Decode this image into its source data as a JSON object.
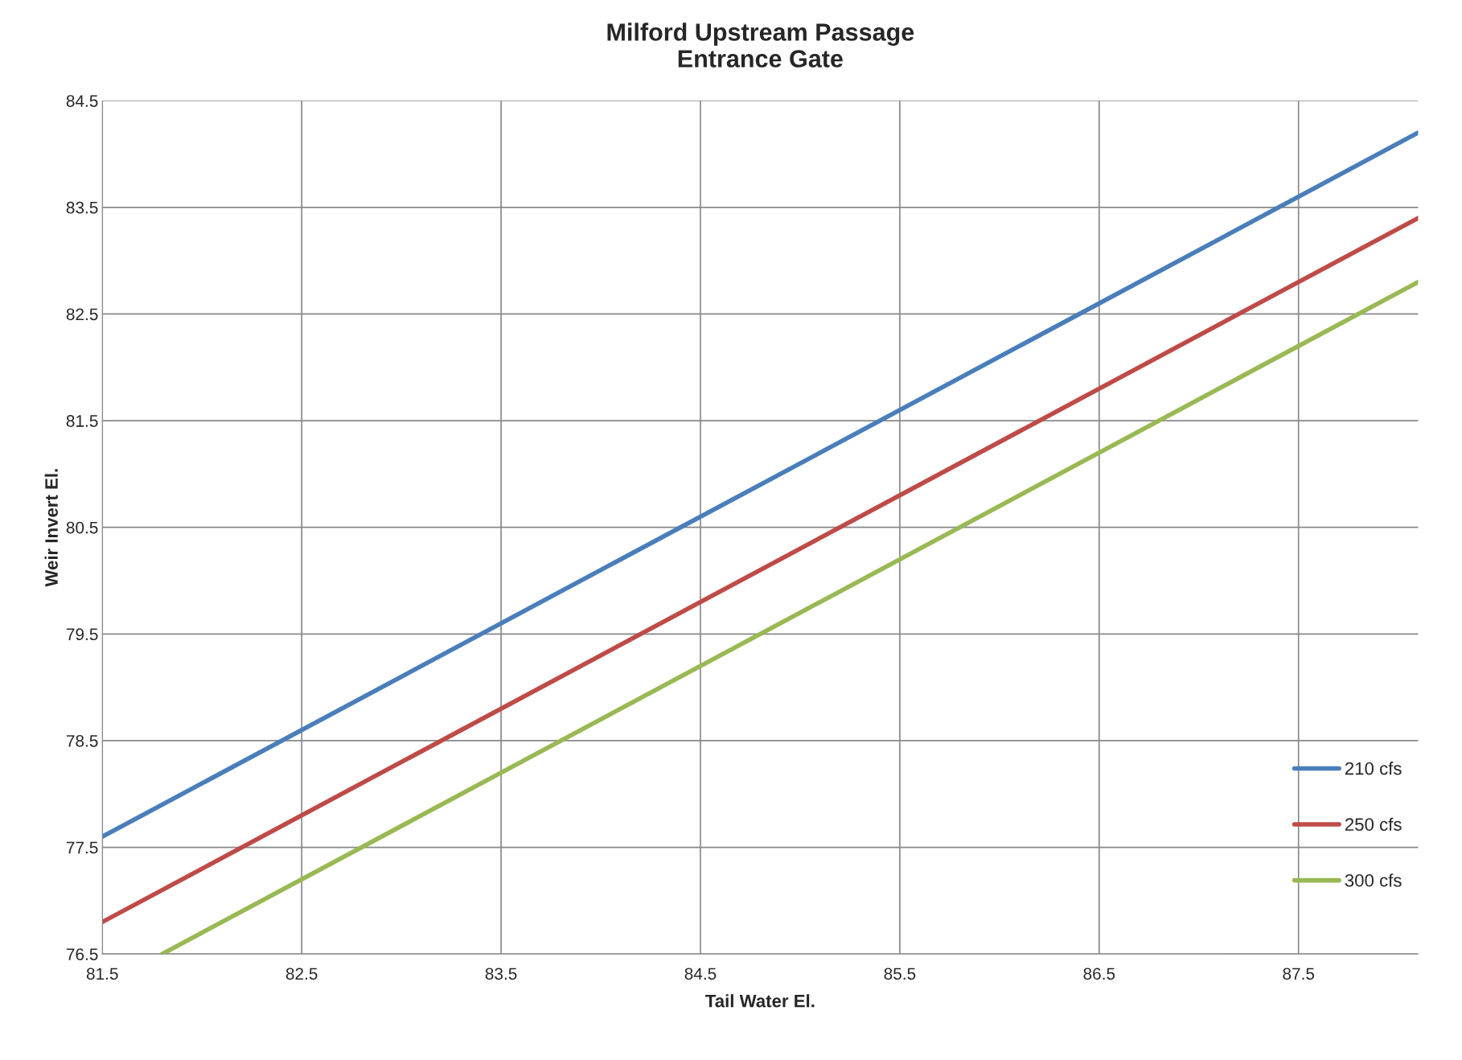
{
  "chart_data": {
    "type": "line",
    "title": "Milford Upstream Passage\nEntrance Gate",
    "xlabel": "Tail Water El.",
    "ylabel": "Weir Invert El.",
    "series": [
      {
        "name": "210 cfs",
        "color": "#4a7ebb",
        "x": [
          81.5,
          88.1
        ],
        "values": [
          77.6,
          84.2
        ]
      },
      {
        "name": "250 cfs",
        "color": "#be4b48",
        "x": [
          81.5,
          88.1
        ],
        "values": [
          76.8,
          83.4
        ]
      },
      {
        "name": "300 cfs",
        "color": "#98b954",
        "x": [
          81.8,
          88.1
        ],
        "values": [
          76.5,
          82.8
        ]
      }
    ],
    "xlim": [
      81.5,
      88.1
    ],
    "xticks": [
      81.5,
      82.5,
      83.5,
      84.5,
      85.5,
      86.5,
      87.5
    ],
    "ylim": [
      76.5,
      84.5
    ],
    "yticks": [
      76.5,
      77.5,
      78.5,
      79.5,
      80.5,
      81.5,
      82.5,
      83.5,
      84.5
    ],
    "grid": true,
    "legend": "right",
    "marker": "none",
    "line_style": "solid"
  }
}
